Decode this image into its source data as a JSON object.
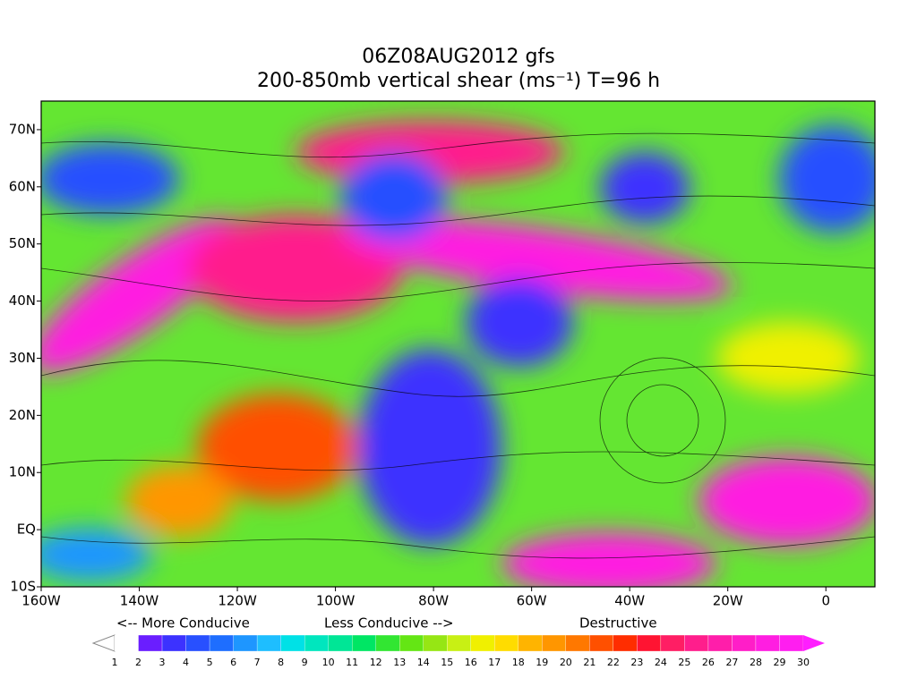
{
  "title": [
    "06Z08AUG2012 gfs",
    "200-850mb vertical shear (ms⁻¹) T=96 h"
  ],
  "map": {
    "xlim": [
      -160,
      10
    ],
    "xticks": [
      {
        "value": -160,
        "label": "160W"
      },
      {
        "value": -140,
        "label": "140W"
      },
      {
        "value": -120,
        "label": "120W"
      },
      {
        "value": -100,
        "label": "100W"
      },
      {
        "value": -80,
        "label": "80W"
      },
      {
        "value": -60,
        "label": "60W"
      },
      {
        "value": -40,
        "label": "40W"
      },
      {
        "value": -20,
        "label": "20W"
      },
      0
    ],
    "ylim": [
      -10,
      75
    ],
    "yticks": [
      {
        "value": -10,
        "label": "10S"
      },
      {
        "value": 0,
        "label": "EQ"
      },
      {
        "value": 10,
        "label": "10N"
      },
      {
        "value": 20,
        "label": "20N"
      },
      {
        "value": 30,
        "label": "30N"
      },
      {
        "value": 40,
        "label": "40N"
      },
      {
        "value": 50,
        "label": "50N"
      },
      {
        "value": 60,
        "label": "60N"
      },
      {
        "value": 70,
        "label": "70N"
      }
    ]
  },
  "legend": {
    "captions": [
      "<-- More Conducive",
      "Less Conducive -->",
      "Destructive"
    ],
    "levels": [
      1,
      2,
      3,
      4,
      5,
      6,
      7,
      8,
      9,
      10,
      11,
      12,
      13,
      14,
      15,
      16,
      17,
      18,
      19,
      20,
      21,
      22,
      23,
      24,
      25,
      26,
      27,
      28,
      29,
      30
    ],
    "colors": [
      "#ffffff",
      "#6a1eff",
      "#3c32ff",
      "#2850ff",
      "#1e6eff",
      "#1e96ff",
      "#1ebeff",
      "#00e1e6",
      "#00e6be",
      "#00e696",
      "#00e664",
      "#32e632",
      "#64e614",
      "#96e614",
      "#c8f014",
      "#f0f000",
      "#ffdc00",
      "#ffb400",
      "#ff9600",
      "#ff7800",
      "#ff5000",
      "#ff2d00",
      "#ff1432",
      "#ff1e64",
      "#ff1e8c",
      "#ff1eaa",
      "#ff1ec8",
      "#ff1ee1",
      "#ff1ef0",
      "#ff1eff"
    ]
  }
}
